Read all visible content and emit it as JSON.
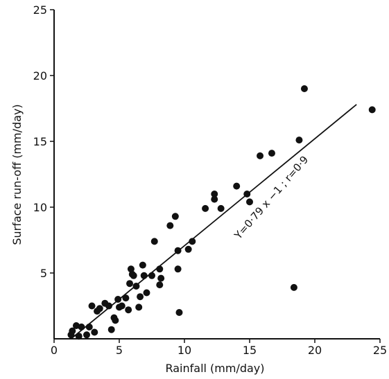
{
  "chart_data": {
    "type": "scatter",
    "title": "",
    "xlabel": "Rainfall (mm/day)",
    "ylabel": "Surface run-off (mm/day)",
    "xlim": [
      0,
      25
    ],
    "ylim": [
      0,
      25
    ],
    "x_ticks": [
      0,
      5,
      10,
      15,
      20,
      25
    ],
    "y_ticks": [
      5,
      10,
      15,
      20,
      25
    ],
    "grid": false,
    "legend": "none",
    "colors": {
      "points": "#111111",
      "axes": "#111111",
      "fit_line": "#111111"
    },
    "series": [
      {
        "points": [
          [
            1.3,
            0.3
          ],
          [
            1.4,
            0.6
          ],
          [
            1.7,
            1.0
          ],
          [
            1.9,
            0.2
          ],
          [
            2.1,
            0.9
          ],
          [
            2.5,
            0.3
          ],
          [
            2.7,
            0.9
          ],
          [
            2.9,
            2.5
          ],
          [
            3.1,
            0.5
          ],
          [
            3.3,
            2.1
          ],
          [
            3.5,
            2.3
          ],
          [
            3.9,
            2.7
          ],
          [
            4.2,
            2.5
          ],
          [
            4.4,
            0.7
          ],
          [
            4.6,
            1.6
          ],
          [
            4.7,
            1.4
          ],
          [
            4.9,
            3.0
          ],
          [
            5.0,
            2.4
          ],
          [
            5.2,
            2.5
          ],
          [
            5.5,
            3.1
          ],
          [
            5.7,
            2.2
          ],
          [
            5.8,
            4.2
          ],
          [
            5.9,
            5.3
          ],
          [
            6.0,
            4.9
          ],
          [
            6.1,
            4.8
          ],
          [
            6.3,
            4.0
          ],
          [
            6.5,
            2.4
          ],
          [
            6.6,
            3.2
          ],
          [
            6.8,
            5.6
          ],
          [
            6.9,
            4.8
          ],
          [
            7.1,
            3.5
          ],
          [
            7.5,
            4.8
          ],
          [
            7.7,
            7.4
          ],
          [
            8.1,
            5.3
          ],
          [
            8.2,
            4.6
          ],
          [
            8.1,
            4.1
          ],
          [
            8.9,
            8.6
          ],
          [
            9.3,
            9.3
          ],
          [
            9.5,
            5.3
          ],
          [
            9.6,
            2.0
          ],
          [
            9.5,
            6.7
          ],
          [
            10.3,
            6.8
          ],
          [
            10.6,
            7.4
          ],
          [
            11.6,
            9.9
          ],
          [
            12.3,
            11.0
          ],
          [
            12.3,
            10.6
          ],
          [
            12.8,
            9.9
          ],
          [
            14.0,
            11.6
          ],
          [
            14.8,
            11.0
          ],
          [
            15.0,
            10.4
          ],
          [
            15.8,
            13.9
          ],
          [
            16.7,
            14.1
          ],
          [
            18.4,
            3.9
          ],
          [
            18.8,
            15.1
          ],
          [
            19.2,
            19.0
          ],
          [
            24.4,
            17.4
          ]
        ]
      }
    ],
    "fit_line": {
      "x": [
        1.3,
        23.2
      ],
      "y": [
        0.0,
        17.8
      ]
    },
    "annotation": "Y=0·79 x −1 ; r=0·9"
  }
}
